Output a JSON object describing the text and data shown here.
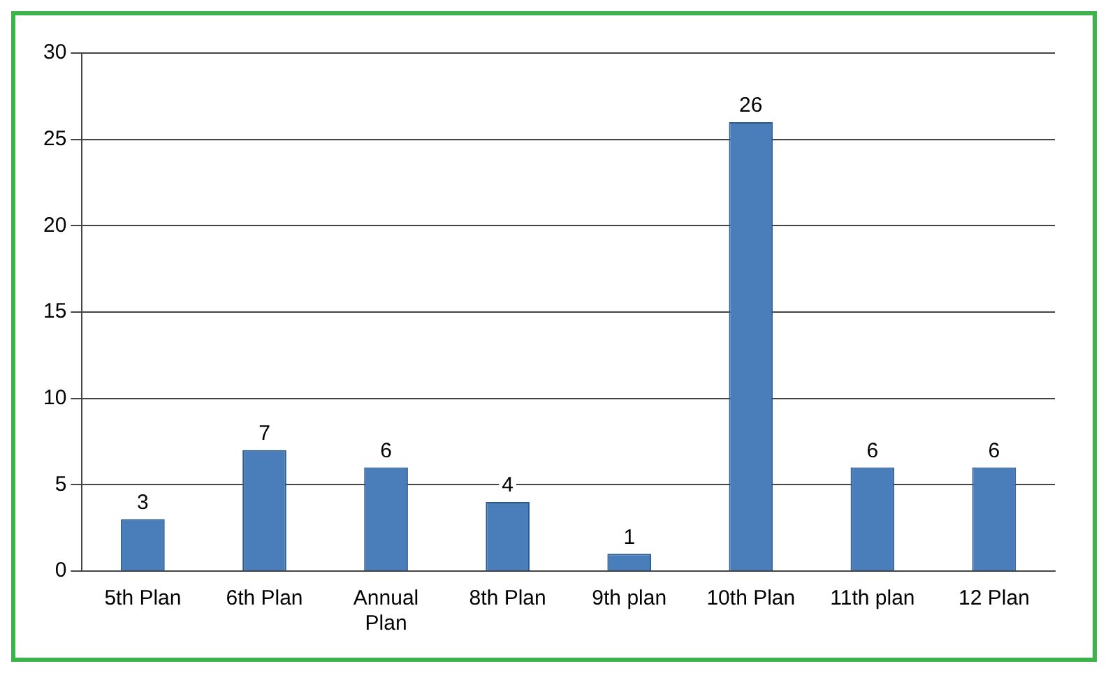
{
  "chart_data": {
    "type": "bar",
    "categories": [
      "5th Plan",
      "6th Plan",
      "Annual Plan",
      "8th Plan",
      "9th plan",
      "10th Plan",
      "11th plan",
      "12 Plan"
    ],
    "values": [
      3,
      7,
      6,
      4,
      1,
      26,
      6,
      6
    ],
    "color": "#4a7ebb",
    "ylim": [
      0,
      30
    ],
    "yticks": [
      0,
      5,
      10,
      15,
      20,
      25,
      30
    ],
    "grid": "y",
    "data_labels": true,
    "legend": false
  }
}
